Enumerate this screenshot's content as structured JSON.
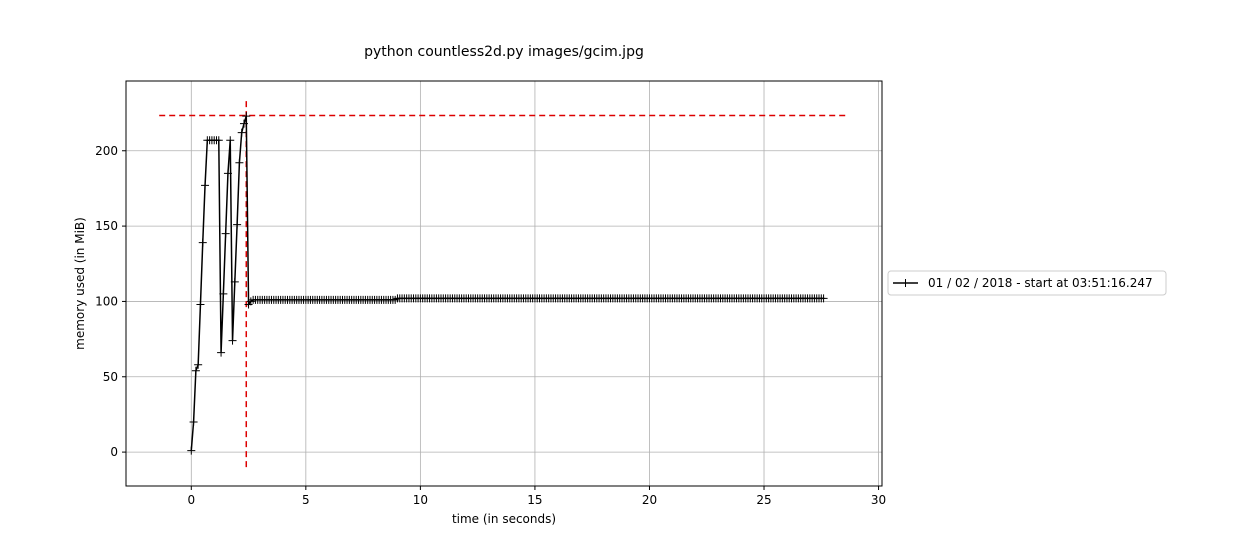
{
  "chart_data": {
    "type": "line",
    "title": "python countless2d.py images/gcim.jpg",
    "xlabel": "time (in seconds)",
    "ylabel": "memory used (in MiB)",
    "xlim": [
      -2.85,
      30.15
    ],
    "ylim": [
      -22.5,
      246.3
    ],
    "xticks": [
      0,
      5,
      10,
      15,
      20,
      25,
      30
    ],
    "xtick_labels": [
      "0",
      "5",
      "10",
      "15",
      "20",
      "25",
      "30"
    ],
    "yticks": [
      0,
      50,
      100,
      150,
      200
    ],
    "ytick_labels": [
      "0",
      "50",
      "100",
      "150",
      "200"
    ],
    "grid": true,
    "legend_position": "right, outside plot",
    "series": [
      {
        "name": "01 / 02 / 2018 - start at 03:51:16.247",
        "color": "#000000",
        "marker": "+",
        "x_start": 0.0,
        "x_step": 0.1,
        "y": [
          1,
          20,
          54,
          58,
          98,
          139,
          177,
          207,
          207,
          207,
          207,
          207,
          207,
          66,
          105,
          145,
          185,
          207,
          74,
          113,
          151,
          192,
          212,
          218,
          223,
          98,
          100,
          101,
          101,
          101,
          101,
          101,
          101,
          101,
          101,
          101,
          101,
          101,
          101,
          101,
          101,
          101,
          101,
          101,
          101,
          101,
          101,
          101,
          101,
          101,
          101,
          101,
          101,
          101,
          101,
          101,
          101,
          101,
          101,
          101,
          101,
          101,
          101,
          101,
          101,
          101,
          101,
          101,
          101,
          101,
          101,
          101,
          101,
          101,
          101,
          101,
          101,
          101,
          101,
          101,
          101,
          101,
          101,
          101,
          101,
          101,
          101,
          101,
          101,
          101,
          102,
          102,
          102,
          102,
          102,
          102,
          102,
          102,
          102,
          102,
          102,
          102,
          102,
          102,
          102,
          102,
          102,
          102,
          102,
          102,
          102,
          102,
          102,
          102,
          102,
          102,
          102,
          102,
          102,
          102,
          102,
          102,
          102,
          102,
          102,
          102,
          102,
          102,
          102,
          102,
          102,
          102,
          102,
          102,
          102,
          102,
          102,
          102,
          102,
          102,
          102,
          102,
          102,
          102,
          102,
          102,
          102,
          102,
          102,
          102,
          102,
          102,
          102,
          102,
          102,
          102,
          102,
          102,
          102,
          102,
          102,
          102,
          102,
          102,
          102,
          102,
          102,
          102,
          102,
          102,
          102,
          102,
          102,
          102,
          102,
          102,
          102,
          102,
          102,
          102,
          102,
          102,
          102,
          102,
          102,
          102,
          102,
          102,
          102,
          102,
          102,
          102,
          102,
          102,
          102,
          102,
          102,
          102,
          102,
          102,
          102,
          102,
          102,
          102,
          102,
          102,
          102,
          102,
          102,
          102,
          102,
          102,
          102,
          102,
          102,
          102,
          102,
          102,
          102,
          102,
          102,
          102,
          102,
          102,
          102,
          102,
          102,
          102,
          102,
          102,
          102,
          102,
          102,
          102,
          102,
          102,
          102,
          102,
          102,
          102,
          102,
          102,
          102,
          102,
          102,
          102,
          102,
          102,
          102,
          102,
          102,
          102,
          102,
          102,
          102,
          102,
          102,
          102,
          102,
          102,
          102,
          102,
          102,
          102,
          102,
          102,
          102,
          102,
          102,
          102,
          102,
          102,
          102,
          102,
          102,
          102,
          102
        ]
      }
    ],
    "reference_lines": [
      {
        "orientation": "horizontal",
        "y": 223.4,
        "x_from": -1.4,
        "x_to": 28.6,
        "color": "#dd0000",
        "style": "dashed"
      },
      {
        "orientation": "vertical",
        "x": 2.4,
        "y_from": -10,
        "y_to": 235,
        "color": "#dd0000",
        "style": "dashed"
      }
    ]
  }
}
